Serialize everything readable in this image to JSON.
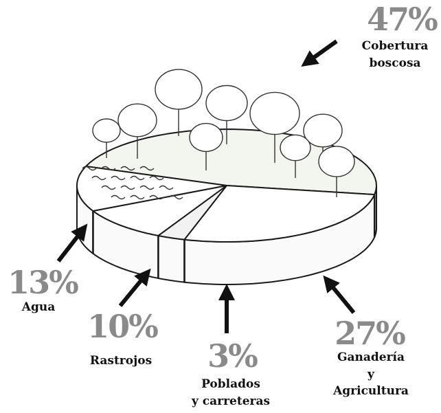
{
  "chart_data": {
    "type": "pie",
    "categories": [
      "Cobertura\nboscosa",
      "Ganadería\ny Agricultura",
      "Poblados\ny carreteras",
      "Rastrojos",
      "Agua"
    ],
    "values": [
      47,
      27,
      3,
      10,
      13
    ],
    "value_labels": [
      "47%",
      "27%",
      "3%",
      "10%",
      "13%"
    ],
    "colors": [
      "#f3f5ef",
      "#ffffff",
      "#f2f2f2",
      "#ffffff",
      "#ffffff"
    ]
  }
}
